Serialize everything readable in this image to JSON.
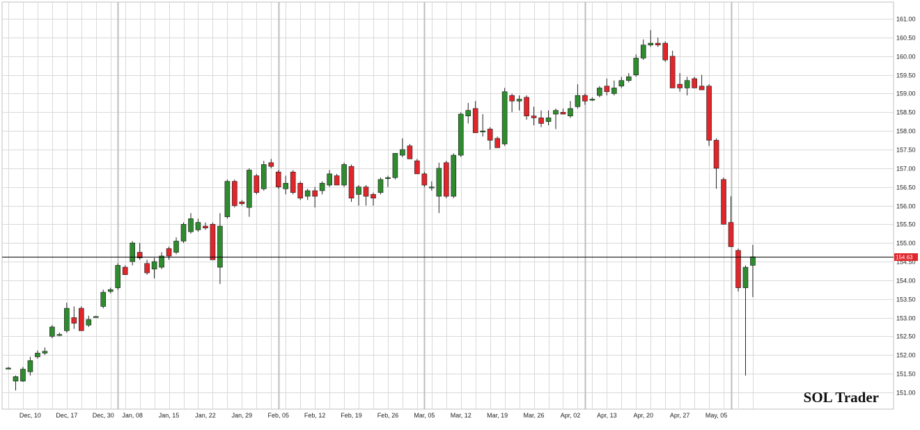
{
  "watermark": "SOL Trader",
  "colors": {
    "up": "#2e8b2e",
    "down": "#e0262b",
    "wick": "#222222",
    "grid": "#d9d9d9",
    "grid_major": "#bdbdbd",
    "last_price_line": "#000000",
    "last_price_tag": "#e0262b"
  },
  "chart_data": {
    "type": "candlestick",
    "title": "",
    "xlabel": "",
    "ylabel": "",
    "ylim": [
      150.55,
      161.45
    ],
    "y_ticks": [
      "151.00",
      "151.50",
      "152.00",
      "152.50",
      "153.00",
      "153.50",
      "154.00",
      "154.50",
      "155.00",
      "155.50",
      "156.00",
      "156.50",
      "157.00",
      "157.50",
      "158.00",
      "158.50",
      "159.00",
      "159.50",
      "160.00",
      "160.50",
      "161.00"
    ],
    "x_tick_labels": [
      "Dec, 10",
      "Dec, 17",
      "Dec, 30",
      "Jan, 08",
      "Jan, 15",
      "Jan, 22",
      "Jan, 29",
      "Feb, 05",
      "Feb, 12",
      "Feb, 19",
      "Feb, 26",
      "Mar, 05",
      "Mar, 12",
      "Mar, 19",
      "Mar, 26",
      "Apr, 02",
      "Apr, 13",
      "Apr, 20",
      "Apr, 27",
      "May, 05"
    ],
    "x_tick_bar_index": [
      3,
      8,
      13,
      17,
      22,
      27,
      32,
      37,
      42,
      47,
      52,
      57,
      62,
      67,
      72,
      77,
      82,
      87,
      92,
      97
    ],
    "last_price": 154.63,
    "last_price_label": "154.63",
    "grid": true,
    "bars": [
      {
        "o": 151.65,
        "h": 151.68,
        "l": 151.62,
        "c": 151.65
      },
      {
        "o": 151.3,
        "h": 151.45,
        "l": 151.05,
        "c": 151.42
      },
      {
        "o": 151.3,
        "h": 151.68,
        "l": 151.28,
        "c": 151.62
      },
      {
        "o": 151.55,
        "h": 151.95,
        "l": 151.45,
        "c": 151.85
      },
      {
        "o": 151.95,
        "h": 152.12,
        "l": 151.9,
        "c": 152.05
      },
      {
        "o": 152.05,
        "h": 152.2,
        "l": 152.0,
        "c": 152.1
      },
      {
        "o": 152.5,
        "h": 152.8,
        "l": 152.45,
        "c": 152.75
      },
      {
        "o": 152.55,
        "h": 152.6,
        "l": 152.5,
        "c": 152.55
      },
      {
        "o": 152.65,
        "h": 153.4,
        "l": 152.6,
        "c": 153.25
      },
      {
        "o": 153.0,
        "h": 153.3,
        "l": 152.7,
        "c": 152.85
      },
      {
        "o": 153.25,
        "h": 153.3,
        "l": 152.65,
        "c": 152.65
      },
      {
        "o": 152.8,
        "h": 153.05,
        "l": 152.75,
        "c": 152.95
      },
      {
        "o": 153.03,
        "h": 153.05,
        "l": 153.0,
        "c": 153.03
      },
      {
        "o": 153.3,
        "h": 153.75,
        "l": 153.25,
        "c": 153.68
      },
      {
        "o": 153.7,
        "h": 153.8,
        "l": 153.65,
        "c": 153.75
      },
      {
        "o": 153.8,
        "h": 154.45,
        "l": 153.75,
        "c": 154.4
      },
      {
        "o": 154.35,
        "h": 154.4,
        "l": 154.15,
        "c": 154.15
      },
      {
        "o": 154.5,
        "h": 155.05,
        "l": 154.4,
        "c": 155.0
      },
      {
        "o": 154.75,
        "h": 155.0,
        "l": 154.55,
        "c": 154.6
      },
      {
        "o": 154.45,
        "h": 154.55,
        "l": 154.15,
        "c": 154.2
      },
      {
        "o": 154.3,
        "h": 154.6,
        "l": 154.05,
        "c": 154.5
      },
      {
        "o": 154.35,
        "h": 154.75,
        "l": 154.3,
        "c": 154.65
      },
      {
        "o": 154.85,
        "h": 154.9,
        "l": 154.55,
        "c": 154.65
      },
      {
        "o": 154.75,
        "h": 155.15,
        "l": 154.7,
        "c": 155.05
      },
      {
        "o": 155.05,
        "h": 155.55,
        "l": 155.0,
        "c": 155.5
      },
      {
        "o": 155.3,
        "h": 155.8,
        "l": 155.25,
        "c": 155.65
      },
      {
        "o": 155.35,
        "h": 155.65,
        "l": 155.3,
        "c": 155.55
      },
      {
        "o": 155.45,
        "h": 155.55,
        "l": 155.35,
        "c": 155.4
      },
      {
        "o": 155.5,
        "h": 155.55,
        "l": 154.55,
        "c": 154.55
      },
      {
        "o": 154.35,
        "h": 155.8,
        "l": 153.9,
        "c": 155.45
      },
      {
        "o": 155.7,
        "h": 156.7,
        "l": 155.65,
        "c": 156.65
      },
      {
        "o": 156.65,
        "h": 156.7,
        "l": 155.95,
        "c": 156.0
      },
      {
        "o": 156.1,
        "h": 156.15,
        "l": 156.0,
        "c": 156.05
      },
      {
        "o": 155.95,
        "h": 157.0,
        "l": 155.7,
        "c": 156.95
      },
      {
        "o": 156.8,
        "h": 156.85,
        "l": 156.3,
        "c": 156.35
      },
      {
        "o": 156.45,
        "h": 157.2,
        "l": 156.4,
        "c": 157.1
      },
      {
        "o": 157.15,
        "h": 157.25,
        "l": 157.0,
        "c": 157.05
      },
      {
        "o": 156.9,
        "h": 156.95,
        "l": 156.45,
        "c": 156.5
      },
      {
        "o": 156.45,
        "h": 156.8,
        "l": 156.3,
        "c": 156.6
      },
      {
        "o": 156.9,
        "h": 156.95,
        "l": 156.3,
        "c": 156.35
      },
      {
        "o": 156.6,
        "h": 156.65,
        "l": 156.15,
        "c": 156.2
      },
      {
        "o": 156.25,
        "h": 156.45,
        "l": 156.15,
        "c": 156.4
      },
      {
        "o": 156.4,
        "h": 156.5,
        "l": 155.95,
        "c": 156.25
      },
      {
        "o": 156.4,
        "h": 156.65,
        "l": 156.3,
        "c": 156.6
      },
      {
        "o": 156.55,
        "h": 156.95,
        "l": 156.5,
        "c": 156.85
      },
      {
        "o": 156.8,
        "h": 156.85,
        "l": 156.55,
        "c": 156.55
      },
      {
        "o": 156.55,
        "h": 157.15,
        "l": 156.5,
        "c": 157.1
      },
      {
        "o": 157.05,
        "h": 157.1,
        "l": 156.1,
        "c": 156.2
      },
      {
        "o": 156.3,
        "h": 156.55,
        "l": 156.0,
        "c": 156.5
      },
      {
        "o": 156.5,
        "h": 156.55,
        "l": 156.0,
        "c": 156.25
      },
      {
        "o": 156.3,
        "h": 156.35,
        "l": 156.0,
        "c": 156.2
      },
      {
        "o": 156.35,
        "h": 156.75,
        "l": 156.3,
        "c": 156.7
      },
      {
        "o": 156.75,
        "h": 156.8,
        "l": 156.5,
        "c": 156.75
      },
      {
        "o": 156.75,
        "h": 157.4,
        "l": 156.7,
        "c": 157.4
      },
      {
        "o": 157.35,
        "h": 157.8,
        "l": 157.3,
        "c": 157.5
      },
      {
        "o": 157.6,
        "h": 157.65,
        "l": 157.25,
        "c": 157.25
      },
      {
        "o": 157.2,
        "h": 157.25,
        "l": 156.85,
        "c": 156.85
      },
      {
        "o": 156.85,
        "h": 156.9,
        "l": 156.5,
        "c": 156.55
      },
      {
        "o": 156.5,
        "h": 156.65,
        "l": 156.4,
        "c": 156.5
      },
      {
        "o": 156.25,
        "h": 157.15,
        "l": 155.8,
        "c": 157.0
      },
      {
        "o": 157.15,
        "h": 157.2,
        "l": 156.2,
        "c": 156.25
      },
      {
        "o": 156.25,
        "h": 157.4,
        "l": 156.2,
        "c": 157.35
      },
      {
        "o": 157.35,
        "h": 158.5,
        "l": 157.3,
        "c": 158.45
      },
      {
        "o": 158.4,
        "h": 158.75,
        "l": 158.2,
        "c": 158.55
      },
      {
        "o": 158.6,
        "h": 158.8,
        "l": 157.95,
        "c": 157.95
      },
      {
        "o": 158.0,
        "h": 158.45,
        "l": 157.85,
        "c": 158.0
      },
      {
        "o": 158.05,
        "h": 158.1,
        "l": 157.5,
        "c": 157.75
      },
      {
        "o": 157.8,
        "h": 157.85,
        "l": 157.55,
        "c": 157.55
      },
      {
        "o": 157.65,
        "h": 159.15,
        "l": 157.6,
        "c": 159.05
      },
      {
        "o": 158.95,
        "h": 159.0,
        "l": 158.5,
        "c": 158.8
      },
      {
        "o": 158.8,
        "h": 158.95,
        "l": 158.55,
        "c": 158.85
      },
      {
        "o": 158.9,
        "h": 158.95,
        "l": 158.3,
        "c": 158.4
      },
      {
        "o": 158.4,
        "h": 158.65,
        "l": 158.15,
        "c": 158.35
      },
      {
        "o": 158.35,
        "h": 158.55,
        "l": 158.1,
        "c": 158.2
      },
      {
        "o": 158.25,
        "h": 158.55,
        "l": 158.15,
        "c": 158.35
      },
      {
        "o": 158.45,
        "h": 158.6,
        "l": 158.05,
        "c": 158.55
      },
      {
        "o": 158.5,
        "h": 158.6,
        "l": 158.45,
        "c": 158.45
      },
      {
        "o": 158.4,
        "h": 158.8,
        "l": 158.35,
        "c": 158.6
      },
      {
        "o": 158.65,
        "h": 159.25,
        "l": 158.6,
        "c": 158.95
      },
      {
        "o": 158.95,
        "h": 159.0,
        "l": 158.7,
        "c": 158.8
      },
      {
        "o": 158.85,
        "h": 158.9,
        "l": 158.8,
        "c": 158.85
      },
      {
        "o": 158.95,
        "h": 159.2,
        "l": 158.9,
        "c": 159.15
      },
      {
        "o": 159.2,
        "h": 159.4,
        "l": 158.95,
        "c": 159.05
      },
      {
        "o": 159.0,
        "h": 159.35,
        "l": 158.95,
        "c": 159.15
      },
      {
        "o": 159.2,
        "h": 159.45,
        "l": 159.15,
        "c": 159.35
      },
      {
        "o": 159.35,
        "h": 159.55,
        "l": 159.3,
        "c": 159.45
      },
      {
        "o": 159.5,
        "h": 160.05,
        "l": 159.45,
        "c": 159.95
      },
      {
        "o": 159.95,
        "h": 160.45,
        "l": 159.9,
        "c": 160.3
      },
      {
        "o": 160.3,
        "h": 160.7,
        "l": 160.25,
        "c": 160.35
      },
      {
        "o": 160.35,
        "h": 160.5,
        "l": 160.25,
        "c": 160.3
      },
      {
        "o": 160.35,
        "h": 160.4,
        "l": 159.85,
        "c": 159.9
      },
      {
        "o": 160.0,
        "h": 160.15,
        "l": 159.15,
        "c": 159.15
      },
      {
        "o": 159.25,
        "h": 159.55,
        "l": 159.05,
        "c": 159.15
      },
      {
        "o": 159.15,
        "h": 159.45,
        "l": 158.95,
        "c": 159.35
      },
      {
        "o": 159.4,
        "h": 159.45,
        "l": 159.15,
        "c": 159.15
      },
      {
        "o": 159.2,
        "h": 159.5,
        "l": 159.1,
        "c": 159.1
      },
      {
        "o": 159.2,
        "h": 159.25,
        "l": 157.6,
        "c": 157.75
      },
      {
        "o": 157.75,
        "h": 157.8,
        "l": 156.45,
        "c": 157.0
      },
      {
        "o": 156.7,
        "h": 156.75,
        "l": 155.5,
        "c": 155.5
      },
      {
        "o": 155.55,
        "h": 156.25,
        "l": 154.9,
        "c": 154.9
      },
      {
        "o": 154.8,
        "h": 154.85,
        "l": 153.7,
        "c": 153.8
      },
      {
        "o": 153.8,
        "h": 154.4,
        "l": 151.45,
        "c": 154.35
      },
      {
        "o": 154.4,
        "h": 154.95,
        "l": 153.55,
        "c": 154.63
      }
    ]
  }
}
